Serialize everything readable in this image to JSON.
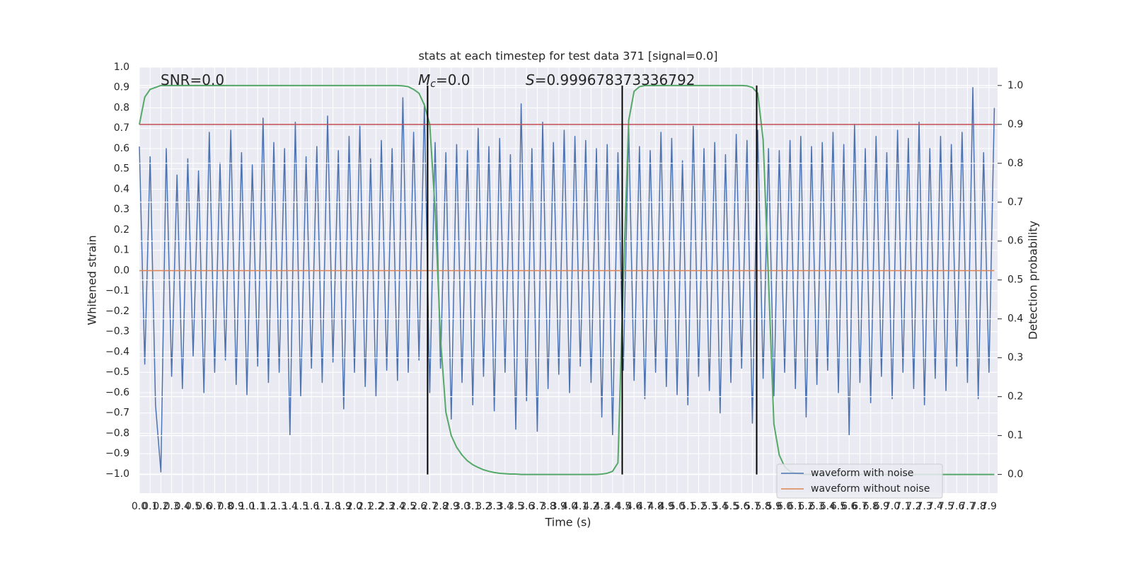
{
  "chart_data": {
    "type": "line",
    "title": "stats at each timestep for test data 371 [signal=0.0]",
    "x_label": "Time (s)",
    "y_label": "Whitened strain",
    "y2_label": "Detection probability",
    "annotations": [
      {
        "text": "SNR=0.0"
      },
      {
        "italic": "M",
        "sub": "c",
        "text": "=0.0"
      },
      {
        "italic": "S",
        "text": "=0.999678373336792"
      }
    ],
    "xlim": [
      0,
      7.98
    ],
    "ylim": [
      -1.094,
      1.0
    ],
    "y2lim": [
      -0.048,
      1.047
    ],
    "xticks": [
      {
        "value": 0,
        "label": "0.0"
      },
      0.1,
      0.2,
      0.3,
      0.4,
      0.5,
      0.6,
      0.7,
      0.8,
      0.9,
      {
        "value": 1,
        "label": "1.0"
      },
      1.1,
      1.2,
      1.3,
      1.4,
      1.5,
      1.6,
      1.7,
      1.8,
      1.9,
      {
        "value": 2,
        "label": "2.0"
      },
      2.1,
      2.2,
      2.3,
      2.4,
      2.5,
      2.6,
      2.7,
      2.8,
      2.9,
      {
        "value": 3,
        "label": "3.0"
      },
      3.1,
      3.2,
      3.3,
      3.4,
      3.5,
      3.6,
      3.7,
      3.8,
      3.9,
      {
        "value": 4,
        "label": "4.0"
      },
      4.1,
      4.2,
      4.3,
      4.4,
      4.5,
      4.6,
      4.7,
      4.8,
      4.9,
      {
        "value": 5,
        "label": "5.0"
      },
      5.1,
      5.2,
      5.3,
      5.4,
      5.5,
      5.6,
      5.7,
      5.8,
      5.9,
      {
        "value": 6,
        "label": "6.0"
      },
      6.1,
      6.2,
      6.3,
      6.4,
      6.5,
      6.6,
      6.7,
      6.8,
      6.9,
      {
        "value": 7,
        "label": "7.0"
      },
      7.1,
      7.2,
      7.3,
      7.4,
      7.5,
      7.6,
      7.7,
      7.8,
      7.9
    ],
    "yticks": [
      {
        "value": 1,
        "label": "1.0"
      },
      0.9,
      0.8,
      0.7,
      0.6,
      0.5,
      0.4,
      0.3,
      0.2,
      0.1,
      {
        "value": 0,
        "label": "0.0"
      },
      {
        "value": -0.1,
        "label": "−0.1"
      },
      {
        "value": -0.2,
        "label": "−0.2"
      },
      {
        "value": -0.3,
        "label": "−0.3"
      },
      {
        "value": -0.4,
        "label": "−0.4"
      },
      {
        "value": -0.5,
        "label": "−0.5"
      },
      {
        "value": -0.6,
        "label": "−0.6"
      },
      {
        "value": -0.7,
        "label": "−0.7"
      },
      {
        "value": -0.8,
        "label": "−0.8"
      },
      {
        "value": -0.9,
        "label": "−0.9"
      },
      {
        "value": -1,
        "label": "−1.0"
      }
    ],
    "y2ticks": [
      {
        "value": 1,
        "label": "1.0"
      },
      0.9,
      0.8,
      0.7,
      0.6,
      0.5,
      0.4,
      0.3,
      0.2,
      0.1,
      {
        "value": 0,
        "label": "0.0"
      }
    ],
    "grid": true,
    "legend": "lower right",
    "x": [
      0,
      0.05,
      0.1,
      0.15,
      0.2,
      0.25,
      0.3,
      0.35,
      0.4,
      0.45,
      0.5,
      0.55,
      0.6,
      0.65,
      0.7,
      0.75,
      0.8,
      0.85,
      0.9,
      0.95,
      1,
      1.05,
      1.1,
      1.15,
      1.2,
      1.25,
      1.3,
      1.35,
      1.4,
      1.45,
      1.5,
      1.55,
      1.6,
      1.65,
      1.7,
      1.75,
      1.8,
      1.85,
      1.9,
      1.95,
      2,
      2.05,
      2.1,
      2.15,
      2.2,
      2.25,
      2.3,
      2.35,
      2.4,
      2.45,
      2.5,
      2.55,
      2.6,
      2.65,
      2.7,
      2.75,
      2.8,
      2.85,
      2.9,
      2.95,
      3,
      3.05,
      3.1,
      3.15,
      3.2,
      3.25,
      3.3,
      3.35,
      3.4,
      3.45,
      3.5,
      3.55,
      3.6,
      3.65,
      3.7,
      3.75,
      3.8,
      3.85,
      3.9,
      3.95,
      4,
      4.05,
      4.1,
      4.15,
      4.2,
      4.25,
      4.3,
      4.35,
      4.4,
      4.45,
      4.5,
      4.55,
      4.6,
      4.65,
      4.7,
      4.75,
      4.8,
      4.85,
      4.9,
      4.95,
      5,
      5.05,
      5.1,
      5.15,
      5.2,
      5.25,
      5.3,
      5.35,
      5.4,
      5.45,
      5.5,
      5.55,
      5.6,
      5.65,
      5.7,
      5.75,
      5.8,
      5.85,
      5.9,
      5.95,
      6,
      6.05,
      6.1,
      6.15,
      6.2,
      6.25,
      6.3,
      6.35,
      6.4,
      6.45,
      6.5,
      6.55,
      6.6,
      6.65,
      6.7,
      6.75,
      6.8,
      6.85,
      6.9,
      6.95,
      7,
      7.05,
      7.1,
      7.15,
      7.2,
      7.25,
      7.3,
      7.35,
      7.4,
      7.45,
      7.5,
      7.55,
      7.6,
      7.65,
      7.7,
      7.75,
      7.8,
      7.85,
      7.9,
      7.95
    ],
    "series": [
      {
        "name": "waveform with noise",
        "color": "#4c72b0",
        "values": [
          0.61,
          -0.46,
          0.56,
          -0.66,
          -0.99,
          0.6,
          -0.52,
          0.47,
          -0.58,
          0.55,
          -0.42,
          0.49,
          -0.6,
          0.68,
          -0.5,
          0.53,
          -0.44,
          0.69,
          -0.56,
          0.58,
          -0.61,
          0.52,
          -0.47,
          0.75,
          -0.55,
          0.63,
          -0.5,
          0.6,
          -0.81,
          0.73,
          -0.62,
          0.56,
          -0.48,
          0.61,
          -0.55,
          0.76,
          -0.45,
          0.59,
          -0.68,
          0.66,
          -0.5,
          0.71,
          -0.57,
          0.55,
          -0.62,
          0.64,
          -0.49,
          0.6,
          -0.54,
          0.85,
          -0.5,
          0.68,
          -0.44,
          0.82,
          -0.6,
          0.63,
          -0.48,
          0.58,
          -0.73,
          0.62,
          -0.55,
          0.59,
          -0.66,
          0.7,
          -0.52,
          0.61,
          -0.69,
          0.65,
          -0.5,
          0.57,
          -0.78,
          0.82,
          -0.64,
          0.6,
          -0.79,
          0.73,
          -0.58,
          0.63,
          -0.51,
          0.69,
          -0.6,
          0.66,
          -0.47,
          0.64,
          -0.55,
          0.6,
          -0.72,
          0.62,
          -0.81,
          0.58,
          -0.49,
          0.7,
          -0.54,
          0.61,
          -0.63,
          0.59,
          -0.5,
          0.68,
          -0.57,
          0.65,
          -0.61,
          0.54,
          -0.66,
          0.71,
          -0.52,
          0.6,
          -0.59,
          0.63,
          -0.7,
          0.57,
          -0.55,
          0.67,
          -0.48,
          0.64,
          -0.75,
          0.69,
          -0.53,
          0.6,
          -0.62,
          0.59,
          -0.5,
          0.64,
          -0.58,
          0.66,
          -0.72,
          0.61,
          -0.56,
          0.63,
          -0.49,
          0.68,
          -0.6,
          0.62,
          -0.81,
          0.72,
          -0.55,
          0.6,
          -0.65,
          0.66,
          -0.52,
          0.58,
          -0.63,
          0.69,
          -0.5,
          0.65,
          -0.58,
          0.73,
          -0.66,
          0.6,
          -0.53,
          0.66,
          -0.59,
          0.62,
          -0.47,
          0.68,
          -0.55,
          0.9,
          -0.63,
          0.58,
          -0.5,
          0.8
        ]
      },
      {
        "name": "waveform without noise",
        "color": "#dd8452",
        "values": [
          0,
          0,
          0,
          0,
          0,
          0,
          0,
          0,
          0,
          0,
          0,
          0,
          0,
          0,
          0,
          0,
          0,
          0,
          0,
          0,
          0,
          0,
          0,
          0,
          0,
          0,
          0,
          0,
          0,
          0,
          0,
          0,
          0,
          0,
          0,
          0,
          0,
          0,
          0,
          0,
          0,
          0,
          0,
          0,
          0,
          0,
          0,
          0,
          0,
          0,
          0,
          0,
          0,
          0,
          0,
          0,
          0,
          0,
          0,
          0,
          0,
          0,
          0,
          0,
          0,
          0,
          0,
          0,
          0,
          0,
          0,
          0,
          0,
          0,
          0,
          0,
          0,
          0,
          0,
          0,
          0,
          0,
          0,
          0,
          0,
          0,
          0,
          0,
          0,
          0,
          0,
          0,
          0,
          0,
          0,
          0,
          0,
          0,
          0,
          0,
          0,
          0,
          0,
          0,
          0,
          0,
          0,
          0,
          0,
          0,
          0,
          0,
          0,
          0,
          0,
          0,
          0,
          0,
          0,
          0,
          0,
          0,
          0,
          0,
          0,
          0,
          0,
          0,
          0,
          0,
          0,
          0,
          0,
          0,
          0,
          0,
          0,
          0,
          0,
          0,
          0,
          0,
          0,
          0,
          0,
          0,
          0,
          0,
          0,
          0,
          0,
          0,
          0,
          0,
          0,
          0,
          0,
          0,
          0,
          0
        ]
      },
      {
        "color": "#55a868",
        "axis": "y2",
        "values": [
          0.9,
          0.97,
          0.99,
          0.995,
          1,
          1,
          1,
          1,
          1,
          1,
          1,
          1,
          1,
          1,
          1,
          1,
          1,
          1,
          1,
          1,
          1,
          1,
          1,
          1,
          1,
          1,
          1,
          1,
          1,
          1,
          1,
          1,
          1,
          1,
          1,
          1,
          1,
          1,
          1,
          1,
          1,
          1,
          1,
          1,
          1,
          1,
          1,
          1,
          1,
          0.999,
          0.997,
          0.99,
          0.98,
          0.95,
          0.9,
          0.68,
          0.35,
          0.16,
          0.1,
          0.07,
          0.05,
          0.035,
          0.025,
          0.018,
          0.012,
          0.008,
          0.005,
          0.003,
          0.002,
          0.001,
          0.001,
          0,
          0,
          0,
          0,
          0,
          0,
          0,
          0,
          0,
          0,
          0,
          0,
          0,
          0,
          0,
          0.001,
          0.003,
          0.008,
          0.03,
          0.5,
          0.91,
          0.985,
          0.997,
          1,
          1,
          1,
          1,
          1,
          1,
          1,
          1,
          1,
          1,
          1,
          1,
          1,
          1,
          1,
          1,
          1,
          1,
          1,
          0.999,
          0.995,
          0.98,
          0.86,
          0.5,
          0.13,
          0.05,
          0.02,
          0.008,
          0.003,
          0.001,
          0,
          0,
          0,
          0,
          0,
          0,
          0,
          0,
          0,
          0,
          0,
          0,
          0,
          0,
          0,
          0,
          0,
          0,
          0,
          0,
          0,
          0,
          0,
          0,
          0,
          0,
          0,
          0,
          0,
          0,
          0,
          0,
          0,
          0,
          0,
          0
        ]
      }
    ],
    "hline": {
      "value": 0.9,
      "axis": "y2",
      "color": "#c44e52"
    },
    "vlines": {
      "x": [
        2.68,
        4.49,
        5.74
      ],
      "y2": [
        0,
        1
      ],
      "color": "#000000"
    }
  }
}
